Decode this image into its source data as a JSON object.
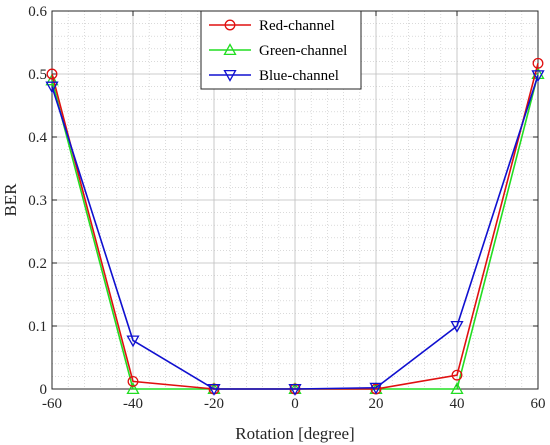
{
  "chart_data": {
    "type": "line",
    "xlabel": "Rotation [degree]",
    "ylabel": "BER",
    "xlim": [
      -60,
      60
    ],
    "ylim": [
      0,
      0.6
    ],
    "xticks": [
      -60,
      -40,
      -20,
      0,
      20,
      40,
      60
    ],
    "yticks": [
      0,
      0.1,
      0.2,
      0.3,
      0.4,
      0.5,
      0.6
    ],
    "xtick_labels": [
      "-60",
      "-40",
      "-20",
      "0",
      "20",
      "40",
      "60"
    ],
    "ytick_labels": [
      "0",
      "0.1",
      "0.2",
      "0.3",
      "0.4",
      "0.5",
      "0.6"
    ],
    "grid": true,
    "minor_grid": true,
    "legend_position": "top-center",
    "x": [
      -60,
      -40,
      -20,
      0,
      20,
      40,
      60
    ],
    "series": [
      {
        "name": "Red-channel",
        "color": "#e01010",
        "marker": "circle",
        "values": [
          0.5,
          0.012,
          0.0,
          0.0,
          0.0,
          0.022,
          0.517
        ]
      },
      {
        "name": "Green-channel",
        "color": "#22dd22",
        "marker": "triangle-up",
        "values": [
          0.49,
          0.0,
          0.0,
          0.0,
          0.0,
          0.0,
          0.5
        ]
      },
      {
        "name": "Blue-channel",
        "color": "#1010d0",
        "marker": "triangle-down",
        "values": [
          0.48,
          0.077,
          0.0,
          0.0,
          0.002,
          0.1,
          0.498
        ]
      }
    ]
  }
}
